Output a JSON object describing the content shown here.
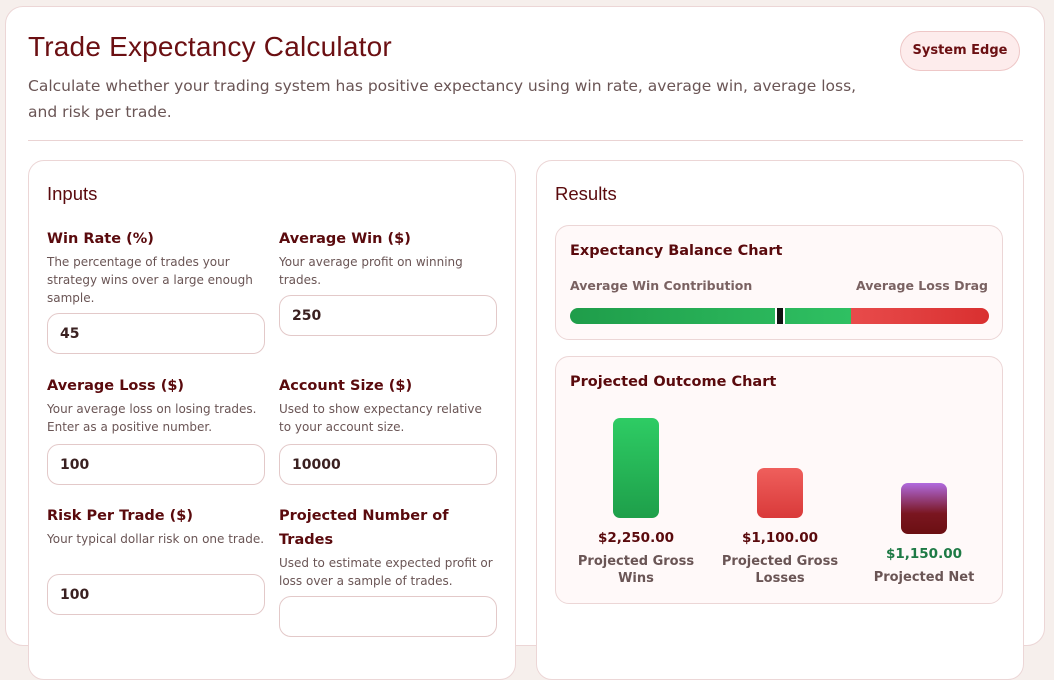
{
  "header": {
    "title": "Trade Expectancy Calculator",
    "subtitle": "Calculate whether your trading system has positive expectancy using win rate, average win, average loss, and risk per trade.",
    "badge": "System Edge"
  },
  "inputs": {
    "title": "Inputs",
    "fields": [
      {
        "label": "Win Rate (%)",
        "help": "The percentage of trades your strategy wins over a large enough sample.",
        "value": "45"
      },
      {
        "label": "Average Win ($)",
        "help": "Your average profit on winning trades.",
        "value": "250"
      },
      {
        "label": "Average Loss ($)",
        "help": "Your average loss on losing trades. Enter as a positive number.",
        "value": "100"
      },
      {
        "label": "Account Size ($)",
        "help": "Used to show expectancy relative to your account size.",
        "value": "10000"
      },
      {
        "label": "Risk Per Trade ($)",
        "help": "Your typical dollar risk on one trade.",
        "value": "100"
      },
      {
        "label": "Projected Number of Trades",
        "help": "Used to estimate expected profit or loss over a sample of trades.",
        "value": ""
      }
    ]
  },
  "results": {
    "title": "Results",
    "balance": {
      "title": "Expectancy Balance Chart",
      "left_label": "Average Win Contribution",
      "right_label": "Average Loss Drag",
      "win_share": 0.67,
      "marker_position": 0.5
    },
    "projected": {
      "title": "Projected Outcome Chart"
    }
  },
  "chart_data": {
    "type": "bar",
    "title": "Projected Outcome Chart",
    "categories": [
      "Projected Gross Wins",
      "Projected Gross Losses",
      "Projected Net"
    ],
    "values": [
      2250,
      1100,
      1150
    ],
    "value_labels": [
      "$2,250.00",
      "$1,100.00",
      "$1,150.00"
    ],
    "colors": [
      "#22b455",
      "#e8504f",
      "#8a1820"
    ],
    "value_colors": [
      "#5a0a0d",
      "#5a0a0d",
      "#1e7a45"
    ]
  }
}
